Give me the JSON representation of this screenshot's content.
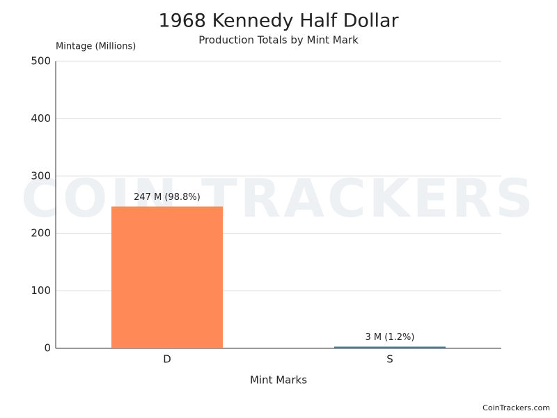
{
  "chart_data": {
    "type": "bar",
    "title": "1968 Kennedy Half Dollar",
    "subtitle": "Production Totals by Mint Mark",
    "y_label": "Mintage (Millions)",
    "x_label": "Mint Marks",
    "categories": [
      "D",
      "S"
    ],
    "values": [
      247,
      3
    ],
    "value_labels": [
      "247 M (98.8%)",
      "3 M (1.2%)"
    ],
    "colors": [
      "#ff8a58",
      "#3d7ea6"
    ],
    "ylim": [
      0,
      500
    ],
    "yticks": [
      0,
      100,
      200,
      300,
      400,
      500
    ],
    "grid": true,
    "watermark": "COIN TRACKERS",
    "credit": "CoinTrackers.com"
  }
}
